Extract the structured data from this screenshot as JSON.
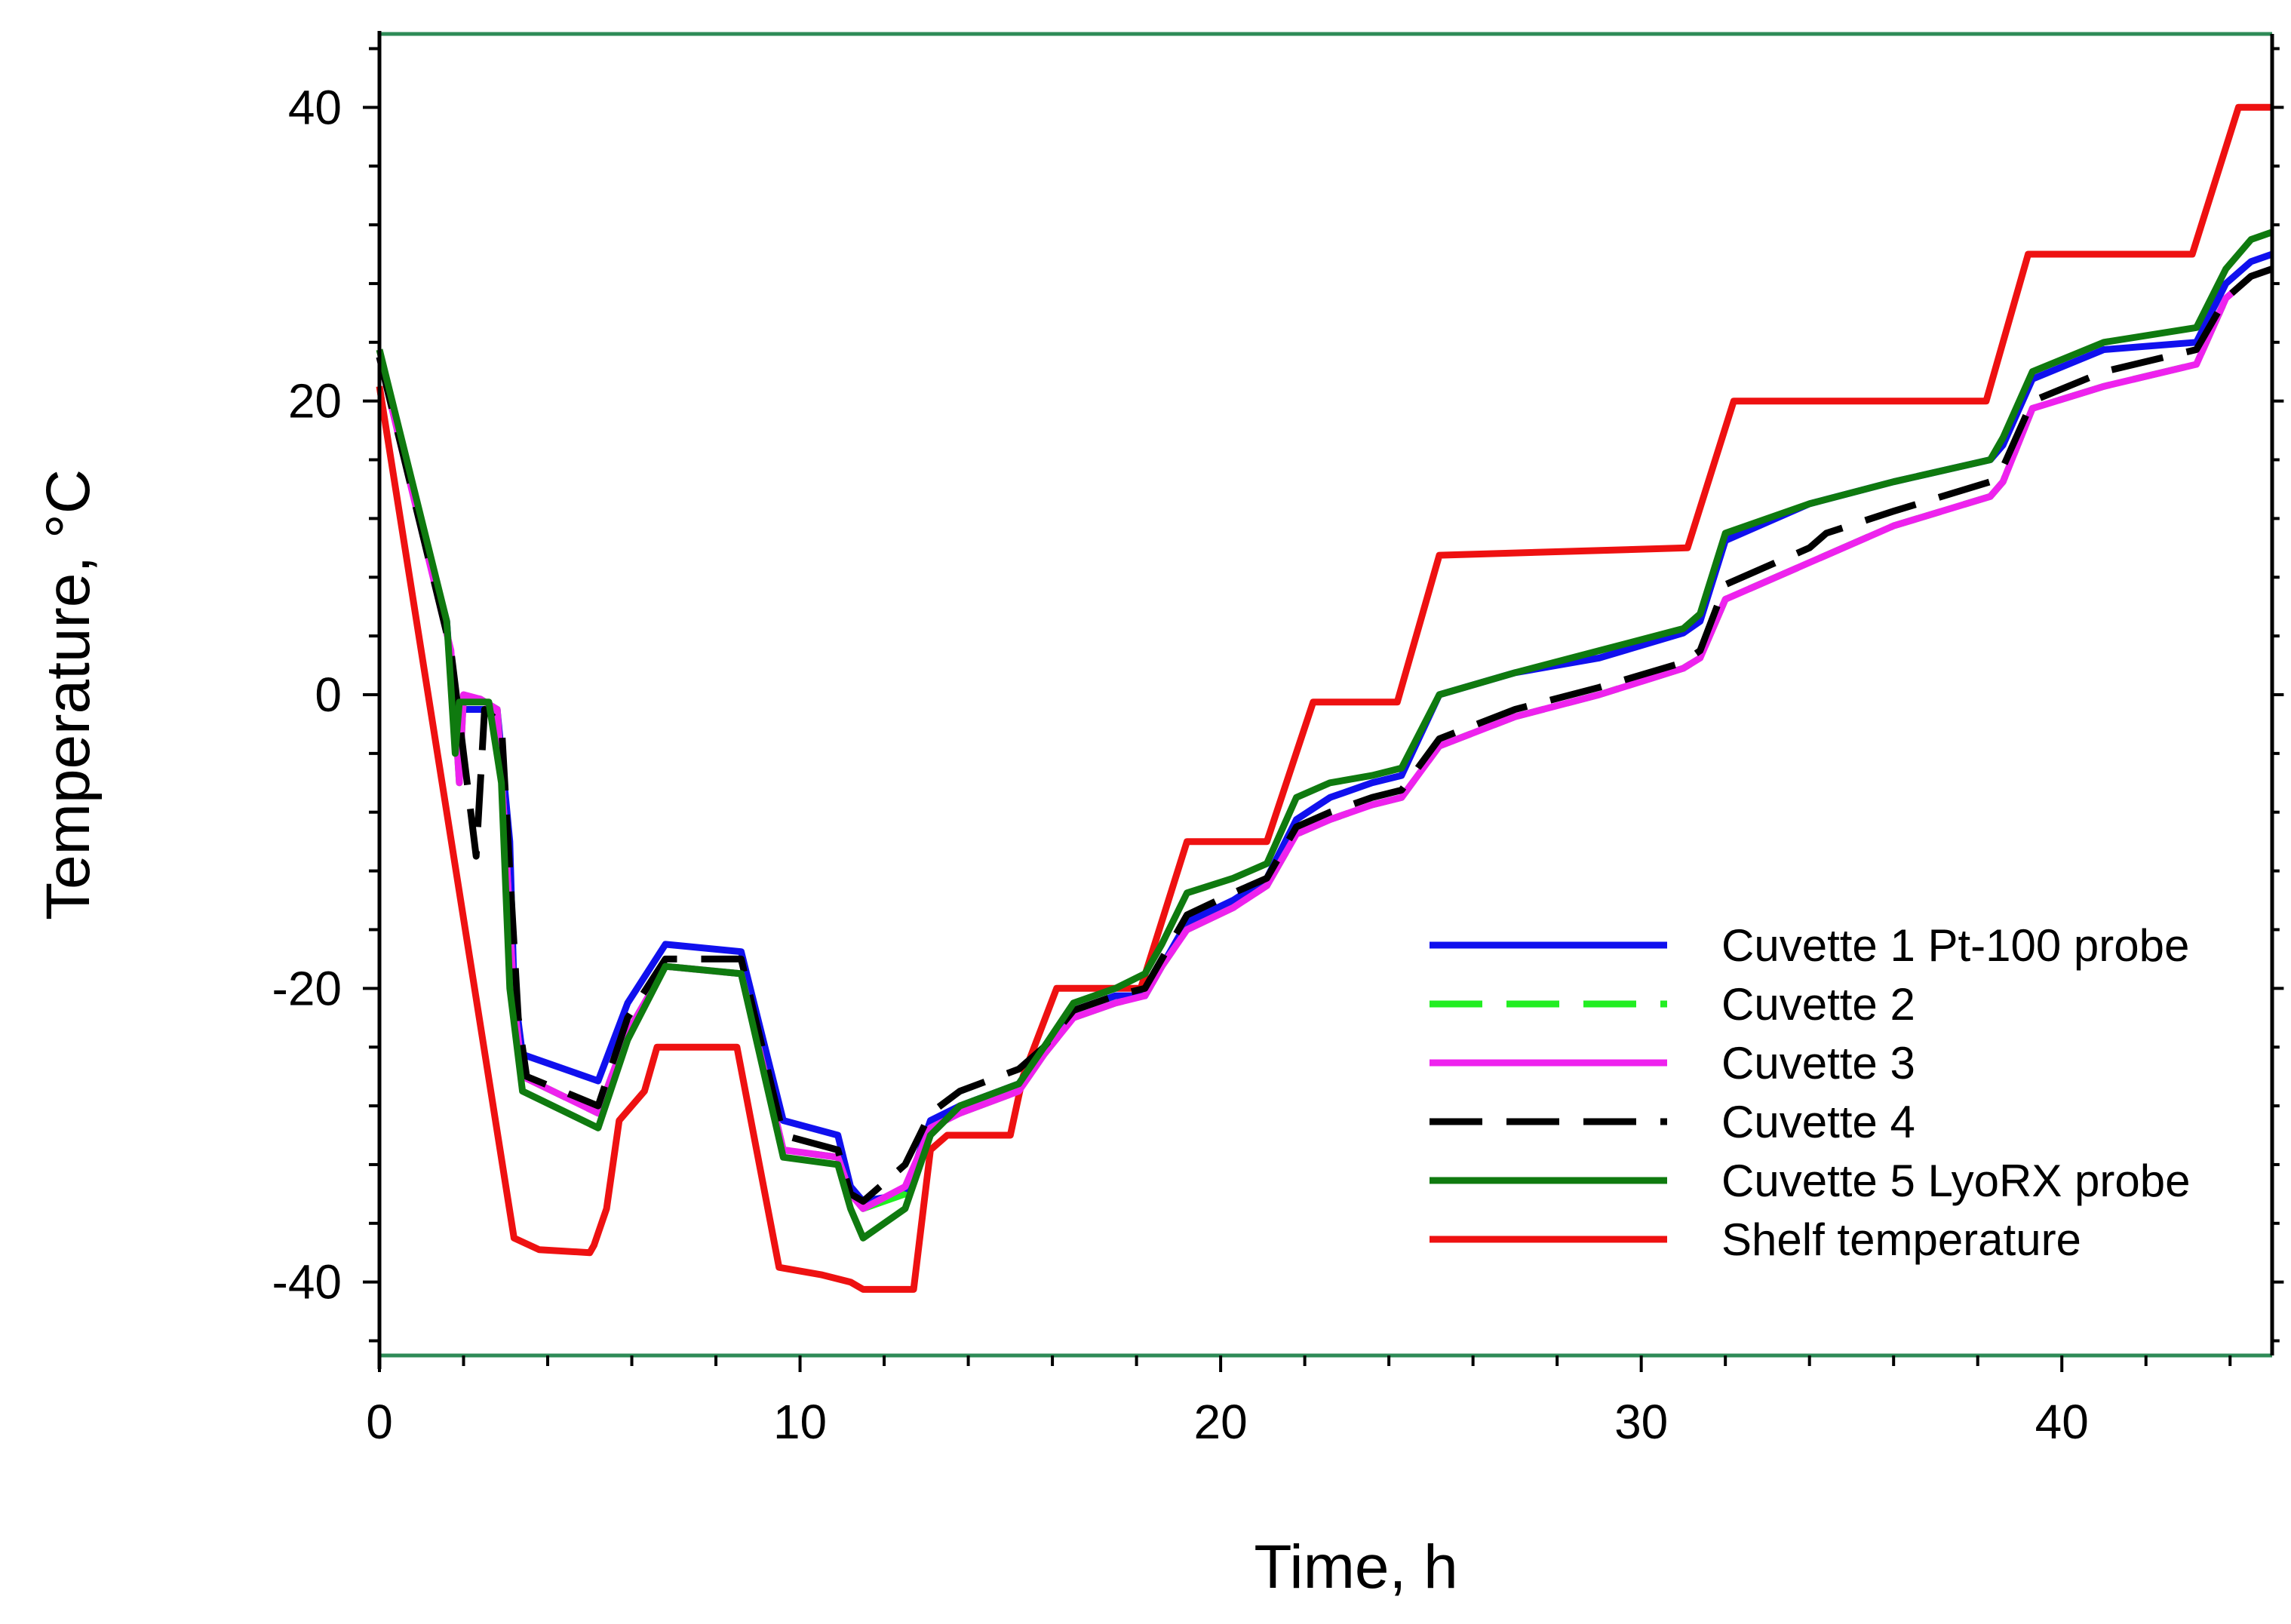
{
  "chart_data": {
    "type": "line",
    "title": "",
    "xlabel": "Time, h",
    "ylabel": "Temperature, °C",
    "xlim": [
      0,
      45
    ],
    "ylim": [
      -45,
      45
    ],
    "x_ticks": [
      0,
      10,
      20,
      30,
      40
    ],
    "x_tick_labels": [
      "0",
      "10",
      "20",
      "30",
      "40"
    ],
    "y_ticks": [
      -40,
      -20,
      0,
      20,
      40
    ],
    "y_tick_labels": [
      "-40",
      "-20",
      "0",
      "20",
      "40"
    ],
    "grid": false,
    "legend_position": "bottom-right",
    "colors": {
      "frame_top_bottom": "#2e8b57",
      "axis": "#000000"
    },
    "series": [
      {
        "name": "Cuvette 1 Pt-100 probe",
        "color": "#1010ee",
        "dash": "solid",
        "points": [
          [
            0,
            23
          ],
          [
            1.6,
            5
          ],
          [
            1.8,
            -3
          ],
          [
            1.9,
            -1
          ],
          [
            2.8,
            -1
          ],
          [
            3.1,
            -10
          ],
          [
            3.2,
            -20
          ],
          [
            3.4,
            -24.5
          ],
          [
            5.2,
            -26.3
          ],
          [
            5.9,
            -21
          ],
          [
            6.8,
            -17
          ],
          [
            8.6,
            -17.5
          ],
          [
            9.6,
            -29
          ],
          [
            10.9,
            -30
          ],
          [
            11.2,
            -33.5
          ],
          [
            11.5,
            -34.5
          ],
          [
            12.5,
            -34
          ],
          [
            13.1,
            -29
          ],
          [
            13.8,
            -28
          ],
          [
            15.2,
            -26.5
          ],
          [
            15.8,
            -24
          ],
          [
            16.5,
            -21.5
          ],
          [
            17.5,
            -20.5
          ],
          [
            18.2,
            -20.5
          ],
          [
            18.6,
            -18.5
          ],
          [
            19.2,
            -15.5
          ],
          [
            20.3,
            -14
          ],
          [
            21.1,
            -12.5
          ],
          [
            21.8,
            -8.5
          ],
          [
            22.6,
            -7
          ],
          [
            23.6,
            -6
          ],
          [
            24.3,
            -5.5
          ],
          [
            25.2,
            0
          ],
          [
            27,
            1.5
          ],
          [
            29,
            2.5
          ],
          [
            31,
            4.2
          ],
          [
            31.4,
            5
          ],
          [
            32,
            10.5
          ],
          [
            34,
            13
          ],
          [
            36,
            14.5
          ],
          [
            38.3,
            16
          ],
          [
            38.6,
            17
          ],
          [
            39.3,
            21.5
          ],
          [
            41,
            23.5
          ],
          [
            43.2,
            24
          ],
          [
            43.9,
            28
          ],
          [
            44.5,
            29.5
          ],
          [
            45,
            30
          ]
        ]
      },
      {
        "name": "Cuvette 2",
        "color": "#22ee22",
        "dash": "long-dash",
        "points": [
          [
            0,
            23
          ],
          [
            1.7,
            3
          ],
          [
            1.9,
            -6
          ],
          [
            2,
            0
          ],
          [
            2.4,
            -0.3
          ],
          [
            2.8,
            -1
          ],
          [
            3,
            -10
          ],
          [
            3.2,
            -21
          ],
          [
            3.4,
            -26
          ],
          [
            5.2,
            -28.5
          ],
          [
            5.9,
            -23
          ],
          [
            6.8,
            -18.5
          ],
          [
            8.6,
            -19
          ],
          [
            9.6,
            -31
          ],
          [
            10.9,
            -31.5
          ],
          [
            11.2,
            -34
          ],
          [
            11.5,
            -35
          ],
          [
            12.5,
            -34
          ],
          [
            13.1,
            -29.5
          ],
          [
            13.8,
            -28.5
          ],
          [
            15.2,
            -27
          ],
          [
            15.8,
            -24.5
          ],
          [
            16.5,
            -22
          ],
          [
            17.5,
            -21
          ],
          [
            18.2,
            -20.5
          ],
          [
            18.6,
            -18.5
          ],
          [
            19.2,
            -16
          ],
          [
            20.3,
            -14.5
          ],
          [
            21.1,
            -13
          ],
          [
            21.8,
            -9.5
          ],
          [
            22.6,
            -8.5
          ],
          [
            23.6,
            -7.5
          ],
          [
            24.3,
            -7
          ],
          [
            25.2,
            -3.5
          ],
          [
            27,
            -1.5
          ],
          [
            29,
            0
          ],
          [
            31,
            1.8
          ],
          [
            31.4,
            2.5
          ],
          [
            32,
            6.5
          ],
          [
            34,
            9
          ],
          [
            36,
            11.5
          ],
          [
            38.3,
            13.5
          ],
          [
            38.6,
            14.5
          ],
          [
            39.3,
            19.5
          ],
          [
            41,
            21
          ],
          [
            43.2,
            22.5
          ],
          [
            43.9,
            27
          ],
          [
            44.5,
            28.5
          ],
          [
            45,
            29
          ]
        ]
      },
      {
        "name": "Cuvette 3",
        "color": "#ee22ee",
        "dash": "solid",
        "points": [
          [
            0,
            23
          ],
          [
            1.7,
            3
          ],
          [
            1.9,
            -6
          ],
          [
            2,
            0
          ],
          [
            2.4,
            -0.3
          ],
          [
            2.8,
            -1
          ],
          [
            3,
            -10
          ],
          [
            3.2,
            -21
          ],
          [
            3.4,
            -26
          ],
          [
            5.2,
            -28.5
          ],
          [
            5.9,
            -23
          ],
          [
            6.8,
            -18.5
          ],
          [
            8.6,
            -19
          ],
          [
            9.6,
            -31
          ],
          [
            10.9,
            -31.5
          ],
          [
            11.2,
            -34
          ],
          [
            11.5,
            -35
          ],
          [
            12.5,
            -33.5
          ],
          [
            13.1,
            -29.5
          ],
          [
            13.8,
            -28.5
          ],
          [
            15.2,
            -27
          ],
          [
            15.8,
            -24.5
          ],
          [
            16.5,
            -22
          ],
          [
            17.5,
            -21
          ],
          [
            18.2,
            -20.5
          ],
          [
            18.6,
            -18.5
          ],
          [
            19.2,
            -16
          ],
          [
            20.3,
            -14.5
          ],
          [
            21.1,
            -13
          ],
          [
            21.8,
            -9.5
          ],
          [
            22.6,
            -8.5
          ],
          [
            23.6,
            -7.5
          ],
          [
            24.3,
            -7
          ],
          [
            25.2,
            -3.5
          ],
          [
            27,
            -1.5
          ],
          [
            29,
            0
          ],
          [
            31,
            1.8
          ],
          [
            31.4,
            2.5
          ],
          [
            32,
            6.5
          ],
          [
            34,
            9
          ],
          [
            36,
            11.5
          ],
          [
            38.3,
            13.5
          ],
          [
            38.6,
            14.5
          ],
          [
            39.3,
            19.5
          ],
          [
            41,
            21
          ],
          [
            43.2,
            22.5
          ],
          [
            43.9,
            27
          ],
          [
            44.5,
            28.5
          ],
          [
            45,
            29
          ]
        ]
      },
      {
        "name": "Cuvette 4",
        "color": "#000000",
        "dash": "long-dash",
        "points": [
          [
            0,
            23
          ],
          [
            1.7,
            3
          ],
          [
            2,
            -4
          ],
          [
            2.3,
            -11
          ],
          [
            2.5,
            -1
          ],
          [
            2.9,
            -2
          ],
          [
            3.1,
            -12
          ],
          [
            3.3,
            -22
          ],
          [
            3.5,
            -26
          ],
          [
            5.2,
            -28
          ],
          [
            5.9,
            -22
          ],
          [
            6.8,
            -18
          ],
          [
            8.6,
            -18
          ],
          [
            9.6,
            -30
          ],
          [
            10.9,
            -31
          ],
          [
            11.2,
            -34
          ],
          [
            11.5,
            -34.5
          ],
          [
            12.5,
            -32
          ],
          [
            13.1,
            -28.5
          ],
          [
            13.8,
            -27
          ],
          [
            15.2,
            -25.5
          ],
          [
            15.8,
            -24
          ],
          [
            16.5,
            -21.5
          ],
          [
            17.5,
            -20.5
          ],
          [
            18.2,
            -20
          ],
          [
            18.6,
            -18
          ],
          [
            19.2,
            -15
          ],
          [
            20.3,
            -13.5
          ],
          [
            21.1,
            -12.5
          ],
          [
            21.8,
            -9
          ],
          [
            22.6,
            -8
          ],
          [
            23.6,
            -7
          ],
          [
            24.3,
            -6.5
          ],
          [
            25.2,
            -3
          ],
          [
            27,
            -1
          ],
          [
            29,
            0.5
          ],
          [
            31,
            2.2
          ],
          [
            31.4,
            3
          ],
          [
            32,
            7.5
          ],
          [
            34,
            10
          ],
          [
            34.4,
            11
          ],
          [
            36,
            12.5
          ],
          [
            38.3,
            14.5
          ],
          [
            38.6,
            15.5
          ],
          [
            39.3,
            20
          ],
          [
            41,
            22
          ],
          [
            43.2,
            23.5
          ],
          [
            43.9,
            27
          ],
          [
            44.5,
            28.5
          ],
          [
            45,
            29
          ]
        ]
      },
      {
        "name": "Cuvette 5 LyoRX probe",
        "color": "#0f7a0f",
        "dash": "solid",
        "points": [
          [
            0,
            23.5
          ],
          [
            1.6,
            5
          ],
          [
            1.8,
            -4
          ],
          [
            1.9,
            -0.5
          ],
          [
            2.6,
            -0.5
          ],
          [
            2.9,
            -6
          ],
          [
            3.1,
            -20
          ],
          [
            3.4,
            -27
          ],
          [
            5.2,
            -29.5
          ],
          [
            5.9,
            -23.5
          ],
          [
            6.8,
            -18.5
          ],
          [
            8.6,
            -19
          ],
          [
            9.6,
            -31.5
          ],
          [
            10.9,
            -32
          ],
          [
            11.2,
            -35
          ],
          [
            11.5,
            -37
          ],
          [
            12.5,
            -35
          ],
          [
            13.1,
            -30
          ],
          [
            13.8,
            -28
          ],
          [
            15.2,
            -26.5
          ],
          [
            15.8,
            -24
          ],
          [
            16.5,
            -21
          ],
          [
            17.5,
            -20
          ],
          [
            18.2,
            -19
          ],
          [
            18.6,
            -17
          ],
          [
            19.2,
            -13.5
          ],
          [
            20.3,
            -12.5
          ],
          [
            21.1,
            -11.5
          ],
          [
            21.8,
            -7
          ],
          [
            22.6,
            -6
          ],
          [
            23.6,
            -5.5
          ],
          [
            24.3,
            -5
          ],
          [
            25.2,
            0
          ],
          [
            27,
            1.5
          ],
          [
            29,
            3
          ],
          [
            31,
            4.5
          ],
          [
            31.4,
            5.5
          ],
          [
            32,
            11
          ],
          [
            34,
            13
          ],
          [
            36,
            14.5
          ],
          [
            38.3,
            16
          ],
          [
            38.6,
            17.5
          ],
          [
            39.3,
            22
          ],
          [
            41,
            24
          ],
          [
            43.2,
            25
          ],
          [
            43.9,
            29
          ],
          [
            44.5,
            31
          ],
          [
            45,
            31.5
          ]
        ]
      },
      {
        "name": "Shelf temperature",
        "color": "#ee1111",
        "dash": "solid",
        "points": [
          [
            0,
            21
          ],
          [
            3.2,
            -37
          ],
          [
            3.8,
            -37.8
          ],
          [
            5,
            -38
          ],
          [
            5.1,
            -37.5
          ],
          [
            5.4,
            -35
          ],
          [
            5.7,
            -29
          ],
          [
            6.3,
            -27
          ],
          [
            6.6,
            -24
          ],
          [
            8.5,
            -24
          ],
          [
            9.5,
            -39
          ],
          [
            10.5,
            -39.5
          ],
          [
            11.2,
            -40
          ],
          [
            11.5,
            -40.5
          ],
          [
            12.7,
            -40.5
          ],
          [
            13.1,
            -31
          ],
          [
            13.5,
            -30
          ],
          [
            15,
            -30
          ],
          [
            15.3,
            -26
          ],
          [
            16.1,
            -20
          ],
          [
            18.1,
            -20
          ],
          [
            19.2,
            -10
          ],
          [
            21.1,
            -10
          ],
          [
            22.2,
            -0.5
          ],
          [
            24.2,
            -0.5
          ],
          [
            25.2,
            9.5
          ],
          [
            31.1,
            10
          ],
          [
            32.2,
            20
          ],
          [
            38.2,
            20
          ],
          [
            39.2,
            30
          ],
          [
            43.1,
            30
          ],
          [
            44.2,
            40
          ],
          [
            45,
            40
          ]
        ]
      }
    ]
  }
}
